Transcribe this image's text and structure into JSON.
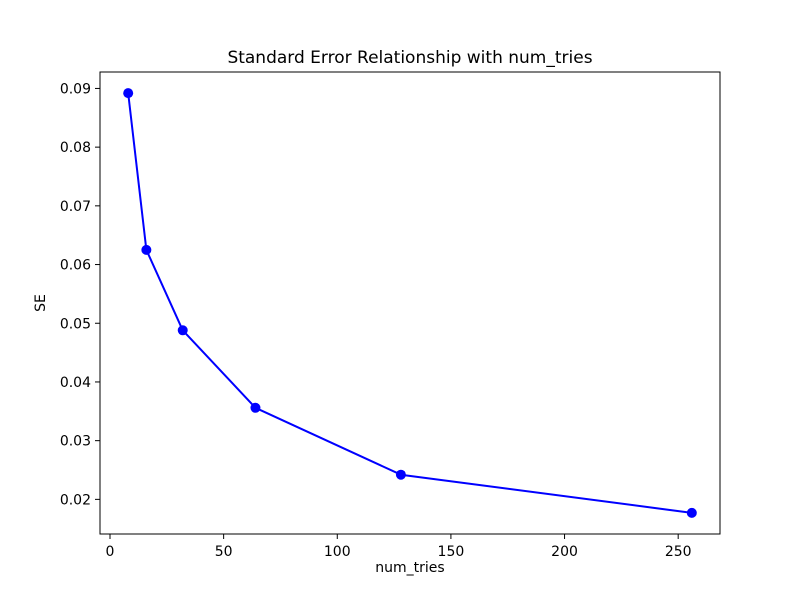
{
  "chart_data": {
    "type": "line",
    "title": "Standard Error Relationship with num_tries",
    "xlabel": "num_tries",
    "ylabel": "SE",
    "x": [
      8,
      16,
      32,
      64,
      128,
      256
    ],
    "y": [
      0.0892,
      0.0625,
      0.0488,
      0.0356,
      0.0242,
      0.0177
    ],
    "xlim": [
      -4.4,
      268.4
    ],
    "ylim": [
      0.0141,
      0.0928
    ],
    "xticks": [
      0,
      50,
      100,
      150,
      200,
      250
    ],
    "xtick_labels": [
      "0",
      "50",
      "100",
      "150",
      "200",
      "250"
    ],
    "yticks": [
      0.02,
      0.03,
      0.04,
      0.05,
      0.06,
      0.07,
      0.08,
      0.09
    ],
    "ytick_labels": [
      "0.02",
      "0.03",
      "0.04",
      "0.05",
      "0.06",
      "0.07",
      "0.08",
      "0.09"
    ],
    "grid": false,
    "legend": "none",
    "line_color": "#0000ff",
    "marker": "circle",
    "marker_color": "#0000ff",
    "axes_color": "#000000",
    "text_color": "#000000",
    "background_color": "#ffffff"
  }
}
